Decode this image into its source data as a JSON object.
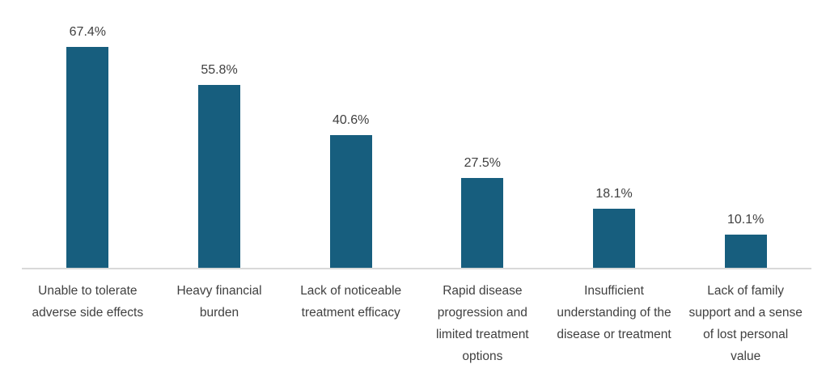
{
  "chart_data": {
    "type": "bar",
    "title": "",
    "xlabel": "",
    "ylabel": "",
    "categories": [
      "Unable to tolerate adverse side effects",
      "Heavy financial burden",
      "Lack of noticeable treatment efficacy",
      "Rapid disease progression and limited treatment options",
      "Insufficient understanding of the disease or treatment",
      "Lack of family support and a sense of lost personal value"
    ],
    "values": [
      67.4,
      55.8,
      40.6,
      27.5,
      18.1,
      10.1
    ],
    "value_labels": [
      "67.4%",
      "55.8%",
      "40.6%",
      "27.5%",
      "18.1%",
      "10.1%"
    ],
    "ylim": [
      0,
      80
    ],
    "grid": false,
    "legend": false,
    "data_labels_position": "above-bar",
    "bar_color": "#175E7E",
    "text_color": "#404040",
    "axis_line_color": "#D9D9D9",
    "background_color": "#FFFFFF"
  }
}
